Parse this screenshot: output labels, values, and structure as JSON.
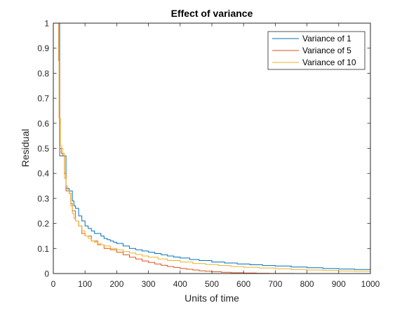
{
  "chart_data": {
    "type": "line",
    "title": "Effect of variance",
    "xlabel": "Units of time",
    "ylabel": "Residual",
    "xlim": [
      0,
      1000
    ],
    "ylim": [
      0,
      1
    ],
    "xticks": [
      0,
      100,
      200,
      300,
      400,
      500,
      600,
      700,
      800,
      900,
      1000
    ],
    "yticks": [
      0,
      0.1,
      0.2,
      0.3,
      0.4,
      0.5,
      0.6,
      0.7,
      0.8,
      0.9,
      1
    ],
    "ytick_labels": [
      "0",
      "0.1",
      "0.2",
      "0.3",
      "0.4",
      "0.5",
      "0.6",
      "0.7",
      "0.8",
      "0.9",
      "1"
    ],
    "grid": false,
    "legend_position": "top-right",
    "series": [
      {
        "name": "Variance of 1",
        "color": "#0072BD",
        "x": [
          12,
          20,
          25,
          30,
          35,
          40,
          45,
          50,
          55,
          60,
          65,
          70,
          80,
          90,
          100,
          110,
          120,
          130,
          140,
          150,
          160,
          170,
          180,
          190,
          200,
          220,
          240,
          260,
          280,
          300,
          320,
          340,
          360,
          380,
          400,
          430,
          460,
          500,
          540,
          580,
          620,
          660,
          700,
          750,
          800,
          850,
          900,
          950,
          1000
        ],
        "y": [
          1.0,
          0.47,
          0.47,
          0.47,
          0.47,
          0.34,
          0.34,
          0.33,
          0.33,
          0.29,
          0.27,
          0.26,
          0.23,
          0.21,
          0.19,
          0.18,
          0.17,
          0.16,
          0.16,
          0.15,
          0.14,
          0.135,
          0.13,
          0.125,
          0.12,
          0.11,
          0.1,
          0.095,
          0.09,
          0.085,
          0.08,
          0.075,
          0.07,
          0.066,
          0.062,
          0.056,
          0.052,
          0.046,
          0.042,
          0.038,
          0.035,
          0.032,
          0.03,
          0.026,
          0.023,
          0.02,
          0.018,
          0.016,
          0.014
        ]
      },
      {
        "name": "Variance of 5",
        "color": "#D95319",
        "x": [
          13,
          17,
          20,
          25,
          30,
          35,
          40,
          45,
          50,
          55,
          60,
          70,
          80,
          90,
          100,
          120,
          140,
          160,
          180,
          200,
          220,
          240,
          260,
          280,
          300,
          320,
          340,
          360,
          380,
          400,
          420,
          440,
          460,
          480,
          500,
          530,
          560,
          600,
          640,
          680,
          720,
          760,
          780
        ],
        "y": [
          1.0,
          0.85,
          0.5,
          0.48,
          0.47,
          0.4,
          0.33,
          0.33,
          0.32,
          0.28,
          0.25,
          0.21,
          0.19,
          0.16,
          0.15,
          0.13,
          0.115,
          0.1,
          0.095,
          0.085,
          0.075,
          0.065,
          0.058,
          0.05,
          0.044,
          0.038,
          0.033,
          0.028,
          0.024,
          0.02,
          0.017,
          0.014,
          0.011,
          0.009,
          0.007,
          0.005,
          0.003,
          0.002,
          0.001,
          0.0005,
          0.0002,
          0.0001,
          0.0
        ]
      },
      {
        "name": "Variance of 10",
        "color": "#EDB120",
        "x": [
          14,
          18,
          22,
          26,
          30,
          35,
          40,
          45,
          50,
          55,
          60,
          65,
          70,
          80,
          90,
          100,
          110,
          120,
          130,
          140,
          150,
          160,
          180,
          200,
          220,
          240,
          260,
          280,
          300,
          330,
          360,
          400,
          440,
          480,
          520,
          560,
          600,
          650,
          700,
          750,
          800,
          850,
          900,
          950,
          1000
        ],
        "y": [
          1.0,
          0.62,
          0.51,
          0.5,
          0.48,
          0.38,
          0.35,
          0.33,
          0.32,
          0.27,
          0.24,
          0.22,
          0.21,
          0.19,
          0.17,
          0.15,
          0.14,
          0.13,
          0.125,
          0.12,
          0.115,
          0.11,
          0.1,
          0.095,
          0.088,
          0.082,
          0.076,
          0.07,
          0.065,
          0.058,
          0.052,
          0.046,
          0.04,
          0.036,
          0.032,
          0.028,
          0.025,
          0.022,
          0.019,
          0.016,
          0.014,
          0.012,
          0.01,
          0.009,
          0.008
        ]
      }
    ]
  }
}
